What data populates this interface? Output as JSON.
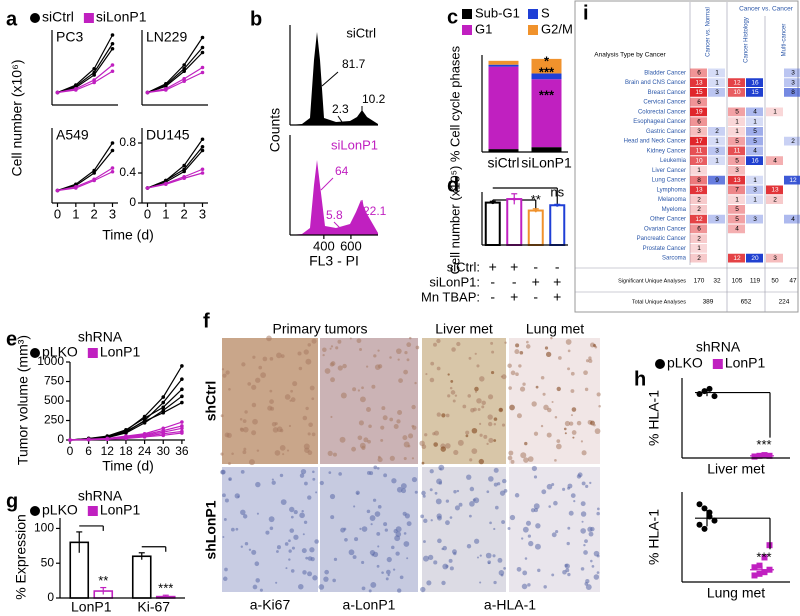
{
  "a": {
    "label": "a",
    "legend": [
      {
        "name": "siCtrl",
        "color": "#000000"
      },
      {
        "name": "siLonP1",
        "color": "#c020c0"
      }
    ],
    "ylabel": "Cell number (x10⁶)",
    "xlabel": "Time (d)",
    "x": [
      0,
      1,
      2,
      3
    ],
    "xlim": [
      -0.3,
      3.3
    ],
    "plots": [
      {
        "name": "PC3",
        "ylim": [
          1,
          7
        ],
        "series": [
          {
            "color": "#000000",
            "values": [
              2,
              2.6,
              3.9,
              6.6
            ]
          },
          {
            "color": "#000000",
            "values": [
              2,
              2.5,
              3.6,
              5.9
            ]
          },
          {
            "color": "#000000",
            "values": [
              2,
              2.4,
              3.4,
              5.5
            ]
          },
          {
            "color": "#c020c0",
            "values": [
              2,
              2.3,
              3.0,
              4.2
            ]
          },
          {
            "color": "#c020c0",
            "values": [
              2,
              2.2,
              2.8,
              3.7
            ]
          }
        ]
      },
      {
        "name": "LN229",
        "ylim": [
          1,
          7
        ],
        "series": [
          {
            "color": "#000000",
            "values": [
              2,
              2.7,
              4.2,
              6.4
            ]
          },
          {
            "color": "#000000",
            "values": [
              2,
              2.6,
              3.9,
              5.6
            ]
          },
          {
            "color": "#000000",
            "values": [
              2,
              2.5,
              3.7,
              5.2
            ]
          },
          {
            "color": "#c020c0",
            "values": [
              2,
              2.3,
              3.1,
              4.0
            ]
          },
          {
            "color": "#c020c0",
            "values": [
              2,
              2.2,
              2.9,
              3.6
            ]
          }
        ]
      },
      {
        "name": "A549",
        "ylim": [
          1,
          7
        ],
        "xticks": [
          0,
          1,
          2,
          3
        ],
        "series": [
          {
            "color": "#000000",
            "values": [
              2,
              2.5,
              3.6,
              5.8
            ]
          },
          {
            "color": "#000000",
            "values": [
              2,
              2.4,
              3.4,
              5.2
            ]
          },
          {
            "color": "#c020c0",
            "values": [
              2,
              2.3,
              2.9,
              3.8
            ]
          },
          {
            "color": "#c020c0",
            "values": [
              2,
              2.2,
              2.8,
              3.5
            ]
          }
        ]
      },
      {
        "name": "DU145",
        "ylim": [
          0,
          1
        ],
        "yticks": [
          0,
          0.4,
          0.8
        ],
        "xticks": [
          0,
          1,
          2,
          3
        ],
        "series": [
          {
            "color": "#000000",
            "values": [
              0.2,
              0.3,
              0.5,
              0.85
            ]
          },
          {
            "color": "#000000",
            "values": [
              0.2,
              0.3,
              0.45,
              0.75
            ]
          },
          {
            "color": "#000000",
            "values": [
              0.2,
              0.28,
              0.42,
              0.7
            ]
          },
          {
            "color": "#c020c0",
            "values": [
              0.2,
              0.26,
              0.35,
              0.45
            ]
          },
          {
            "color": "#c020c0",
            "values": [
              0.2,
              0.25,
              0.33,
              0.4
            ]
          }
        ]
      }
    ]
  },
  "b": {
    "label": "b",
    "ylabel": "Counts",
    "xlabel": "FL3 - PI",
    "xlim": [
      150,
      800
    ],
    "xticks": [
      400,
      600
    ],
    "top": {
      "name": "siCtrl",
      "color": "#000000",
      "peaks": [
        81.7,
        2.3,
        10.2
      ]
    },
    "bottom": {
      "name": "siLonP1",
      "color": "#c020c0",
      "peaks": [
        64,
        5.8,
        22.1
      ]
    }
  },
  "c": {
    "label": "c",
    "ylabel": "% Cell cycle phases",
    "categories": [
      "siCtrl",
      "siLonP1"
    ],
    "ylim": [
      0,
      100
    ],
    "series": [
      {
        "name": "Sub-G1",
        "color": "#000000",
        "values": [
          3,
          5
        ]
      },
      {
        "name": "S",
        "color": "#1f3fd6",
        "values": [
          2,
          6
        ]
      },
      {
        "name": "G1",
        "color": "#c020c0",
        "values": [
          85,
          70
        ]
      },
      {
        "name": "G2/M",
        "color": "#f0922c",
        "values": [
          4,
          15
        ]
      }
    ],
    "annotations": [
      "*",
      "***",
      "***"
    ]
  },
  "d": {
    "label": "d",
    "ylabel": "Cell number (x10⁵)",
    "ylim": [
      0,
      6
    ],
    "values": [
      4.8,
      5.2,
      3.9,
      4.5
    ],
    "errors": [
      0.15,
      0.6,
      0.2,
      0.1
    ],
    "colors": [
      "#000000",
      "#c020c0",
      "#f0922c",
      "#1f3fd6"
    ],
    "annotations": [
      "**",
      "ns"
    ],
    "rows": [
      {
        "label": "siCtrl:",
        "marks": [
          "+",
          "+",
          "-",
          "-"
        ]
      },
      {
        "label": "siLonP1:",
        "marks": [
          "-",
          "-",
          "+",
          "+"
        ]
      },
      {
        "label": "Mn TBAP:",
        "marks": [
          "-",
          "+",
          "-",
          "+"
        ]
      }
    ]
  },
  "e": {
    "label": "e",
    "title": "shRNA",
    "legend": [
      {
        "name": "pLKO",
        "color": "#000000"
      },
      {
        "name": "LonP1",
        "color": "#c020c0"
      }
    ],
    "ylabel": "Tumor volume (mm³)",
    "xlabel": "Time (d)",
    "x": [
      0,
      6,
      12,
      18,
      24,
      30,
      36
    ],
    "xlim": [
      0,
      37
    ],
    "xticks": [
      0,
      6,
      12,
      18,
      24,
      30,
      36
    ],
    "ylim": [
      0,
      1000
    ],
    "yticks": [
      0,
      250,
      500,
      750,
      1000
    ],
    "series": [
      {
        "color": "#000000",
        "values": [
          0,
          20,
          40,
          120,
          300,
          550,
          950
        ]
      },
      {
        "color": "#000000",
        "values": [
          0,
          15,
          35,
          100,
          250,
          480,
          780
        ]
      },
      {
        "color": "#000000",
        "values": [
          0,
          20,
          50,
          130,
          280,
          420,
          650
        ]
      },
      {
        "color": "#000000",
        "values": [
          0,
          10,
          30,
          90,
          220,
          380,
          560
        ]
      },
      {
        "color": "#000000",
        "values": [
          0,
          15,
          40,
          110,
          240,
          350,
          480
        ]
      },
      {
        "color": "#c020c0",
        "values": [
          0,
          10,
          20,
          50,
          80,
          150,
          230
        ]
      },
      {
        "color": "#c020c0",
        "values": [
          0,
          8,
          15,
          40,
          70,
          120,
          180
        ]
      },
      {
        "color": "#c020c0",
        "values": [
          0,
          5,
          15,
          35,
          60,
          100,
          150
        ]
      },
      {
        "color": "#c020c0",
        "values": [
          0,
          5,
          10,
          30,
          50,
          80,
          110
        ]
      },
      {
        "color": "#c020c0",
        "values": [
          0,
          5,
          10,
          20,
          40,
          60,
          90
        ]
      }
    ]
  },
  "f": {
    "label": "f",
    "columns": [
      "Primary tumors",
      "Liver met",
      "Lung met"
    ],
    "rows": [
      "shCtrl",
      "shLonP1"
    ],
    "stains": [
      "a-Ki67",
      "a-LonP1",
      "a-HLA-1"
    ]
  },
  "g": {
    "label": "g",
    "title": "shRNA",
    "legend": [
      {
        "name": "pLKO",
        "color": "#000000"
      },
      {
        "name": "LonP1",
        "color": "#c020c0"
      }
    ],
    "ylabel": "% Expression",
    "categories": [
      "LonP1",
      "Ki-67"
    ],
    "ylim": [
      0,
      115
    ],
    "yticks": [
      0,
      50,
      100
    ],
    "series": [
      {
        "color": "#000000",
        "values": [
          80,
          60
        ],
        "errors": [
          15,
          5
        ]
      },
      {
        "color": "#c020c0",
        "values": [
          10,
          2
        ],
        "errors": [
          5,
          2
        ]
      }
    ],
    "annotations": [
      "**",
      "***"
    ]
  },
  "h": {
    "label": "h",
    "title": "shRNA",
    "legend": [
      {
        "name": "pLKO",
        "color": "#000000"
      },
      {
        "name": "LonP1",
        "color": "#c020c0"
      }
    ],
    "ylabel": "% HLA-1",
    "ylim": [
      0,
      110
    ],
    "plots": [
      {
        "name": "Liver met",
        "annotation": "***",
        "groups": [
          {
            "color": "#000000",
            "mean": 90,
            "error": 5,
            "points": [
              88,
              92,
              95,
              85
            ]
          },
          {
            "color": "#c020c0",
            "mean": 3,
            "error": 1,
            "points": [
              2,
              3,
              4,
              3,
              2
            ]
          }
        ]
      },
      {
        "name": "Lung met",
        "annotation": "***",
        "groups": [
          {
            "color": "#000000",
            "mean": 78,
            "error": 10,
            "points": [
              95,
              90,
              80,
              75,
              70,
              65,
              85
            ]
          },
          {
            "color": "#c020c0",
            "mean": 15,
            "error": 5,
            "points": [
              8,
              10,
              12,
              15,
              18,
              20,
              30,
              45
            ]
          }
        ]
      }
    ]
  },
  "i": {
    "label": "i",
    "header": "Analysis Type by Cancer",
    "group_headers": [
      "Cancer vs. Normal",
      "Cancer vs. Cancer"
    ],
    "sub_headers": [
      "Cancer Histology",
      "Multi-cancer"
    ],
    "rows": [
      {
        "name": "Bladder Cancer",
        "cells": [
          6,
          1,
          null,
          null,
          null,
          3
        ]
      },
      {
        "name": "Brain and CNS Cancer",
        "cells": [
          13,
          1,
          12,
          16,
          null,
          3
        ]
      },
      {
        "name": "Breast Cancer",
        "cells": [
          15,
          3,
          10,
          15,
          null,
          8
        ]
      },
      {
        "name": "Cervical Cancer",
        "cells": [
          6,
          null,
          null,
          null,
          null,
          null
        ]
      },
      {
        "name": "Colorectal Cancer",
        "cells": [
          19,
          null,
          5,
          4,
          1,
          null
        ]
      },
      {
        "name": "Esophageal Cancer",
        "cells": [
          6,
          null,
          1,
          1,
          null,
          null
        ]
      },
      {
        "name": "Gastric Cancer",
        "cells": [
          3,
          2,
          1,
          5,
          null,
          null
        ]
      },
      {
        "name": "Head and Neck Cancer",
        "cells": [
          17,
          1,
          5,
          5,
          null,
          2
        ]
      },
      {
        "name": "Kidney Cancer",
        "cells": [
          11,
          3,
          11,
          4,
          null,
          null
        ]
      },
      {
        "name": "Leukemia",
        "cells": [
          10,
          1,
          5,
          16,
          4,
          null
        ]
      },
      {
        "name": "Liver Cancer",
        "cells": [
          1,
          null,
          3,
          null,
          null,
          null
        ]
      },
      {
        "name": "Lung Cancer",
        "cells": [
          8,
          9,
          13,
          1,
          null,
          12
        ]
      },
      {
        "name": "Lymphoma",
        "cells": [
          13,
          null,
          7,
          3,
          13,
          null
        ]
      },
      {
        "name": "Melanoma",
        "cells": [
          2,
          null,
          1,
          1,
          2,
          null
        ]
      },
      {
        "name": "Myeloma",
        "cells": [
          2,
          null,
          5,
          null,
          null,
          null
        ]
      },
      {
        "name": "Other Cancer",
        "cells": [
          12,
          3,
          5,
          3,
          null,
          4
        ]
      },
      {
        "name": "Ovarian Cancer",
        "cells": [
          6,
          null,
          4,
          null,
          null,
          null
        ]
      },
      {
        "name": "Pancreatic Cancer",
        "cells": [
          2,
          null,
          null,
          null,
          null,
          null
        ]
      },
      {
        "name": "Prostate Cancer",
        "cells": [
          1,
          null,
          null,
          null,
          null,
          null
        ]
      },
      {
        "name": "Sarcoma",
        "cells": [
          2,
          null,
          12,
          20,
          3,
          null
        ]
      }
    ],
    "significant": {
      "name": "Significant Unique Analyses",
      "cells": [
        170,
        32,
        105,
        119,
        50,
        47
      ]
    },
    "total": {
      "name": "Total Unique Analyses",
      "cells": [
        389,
        652,
        224
      ]
    }
  }
}
